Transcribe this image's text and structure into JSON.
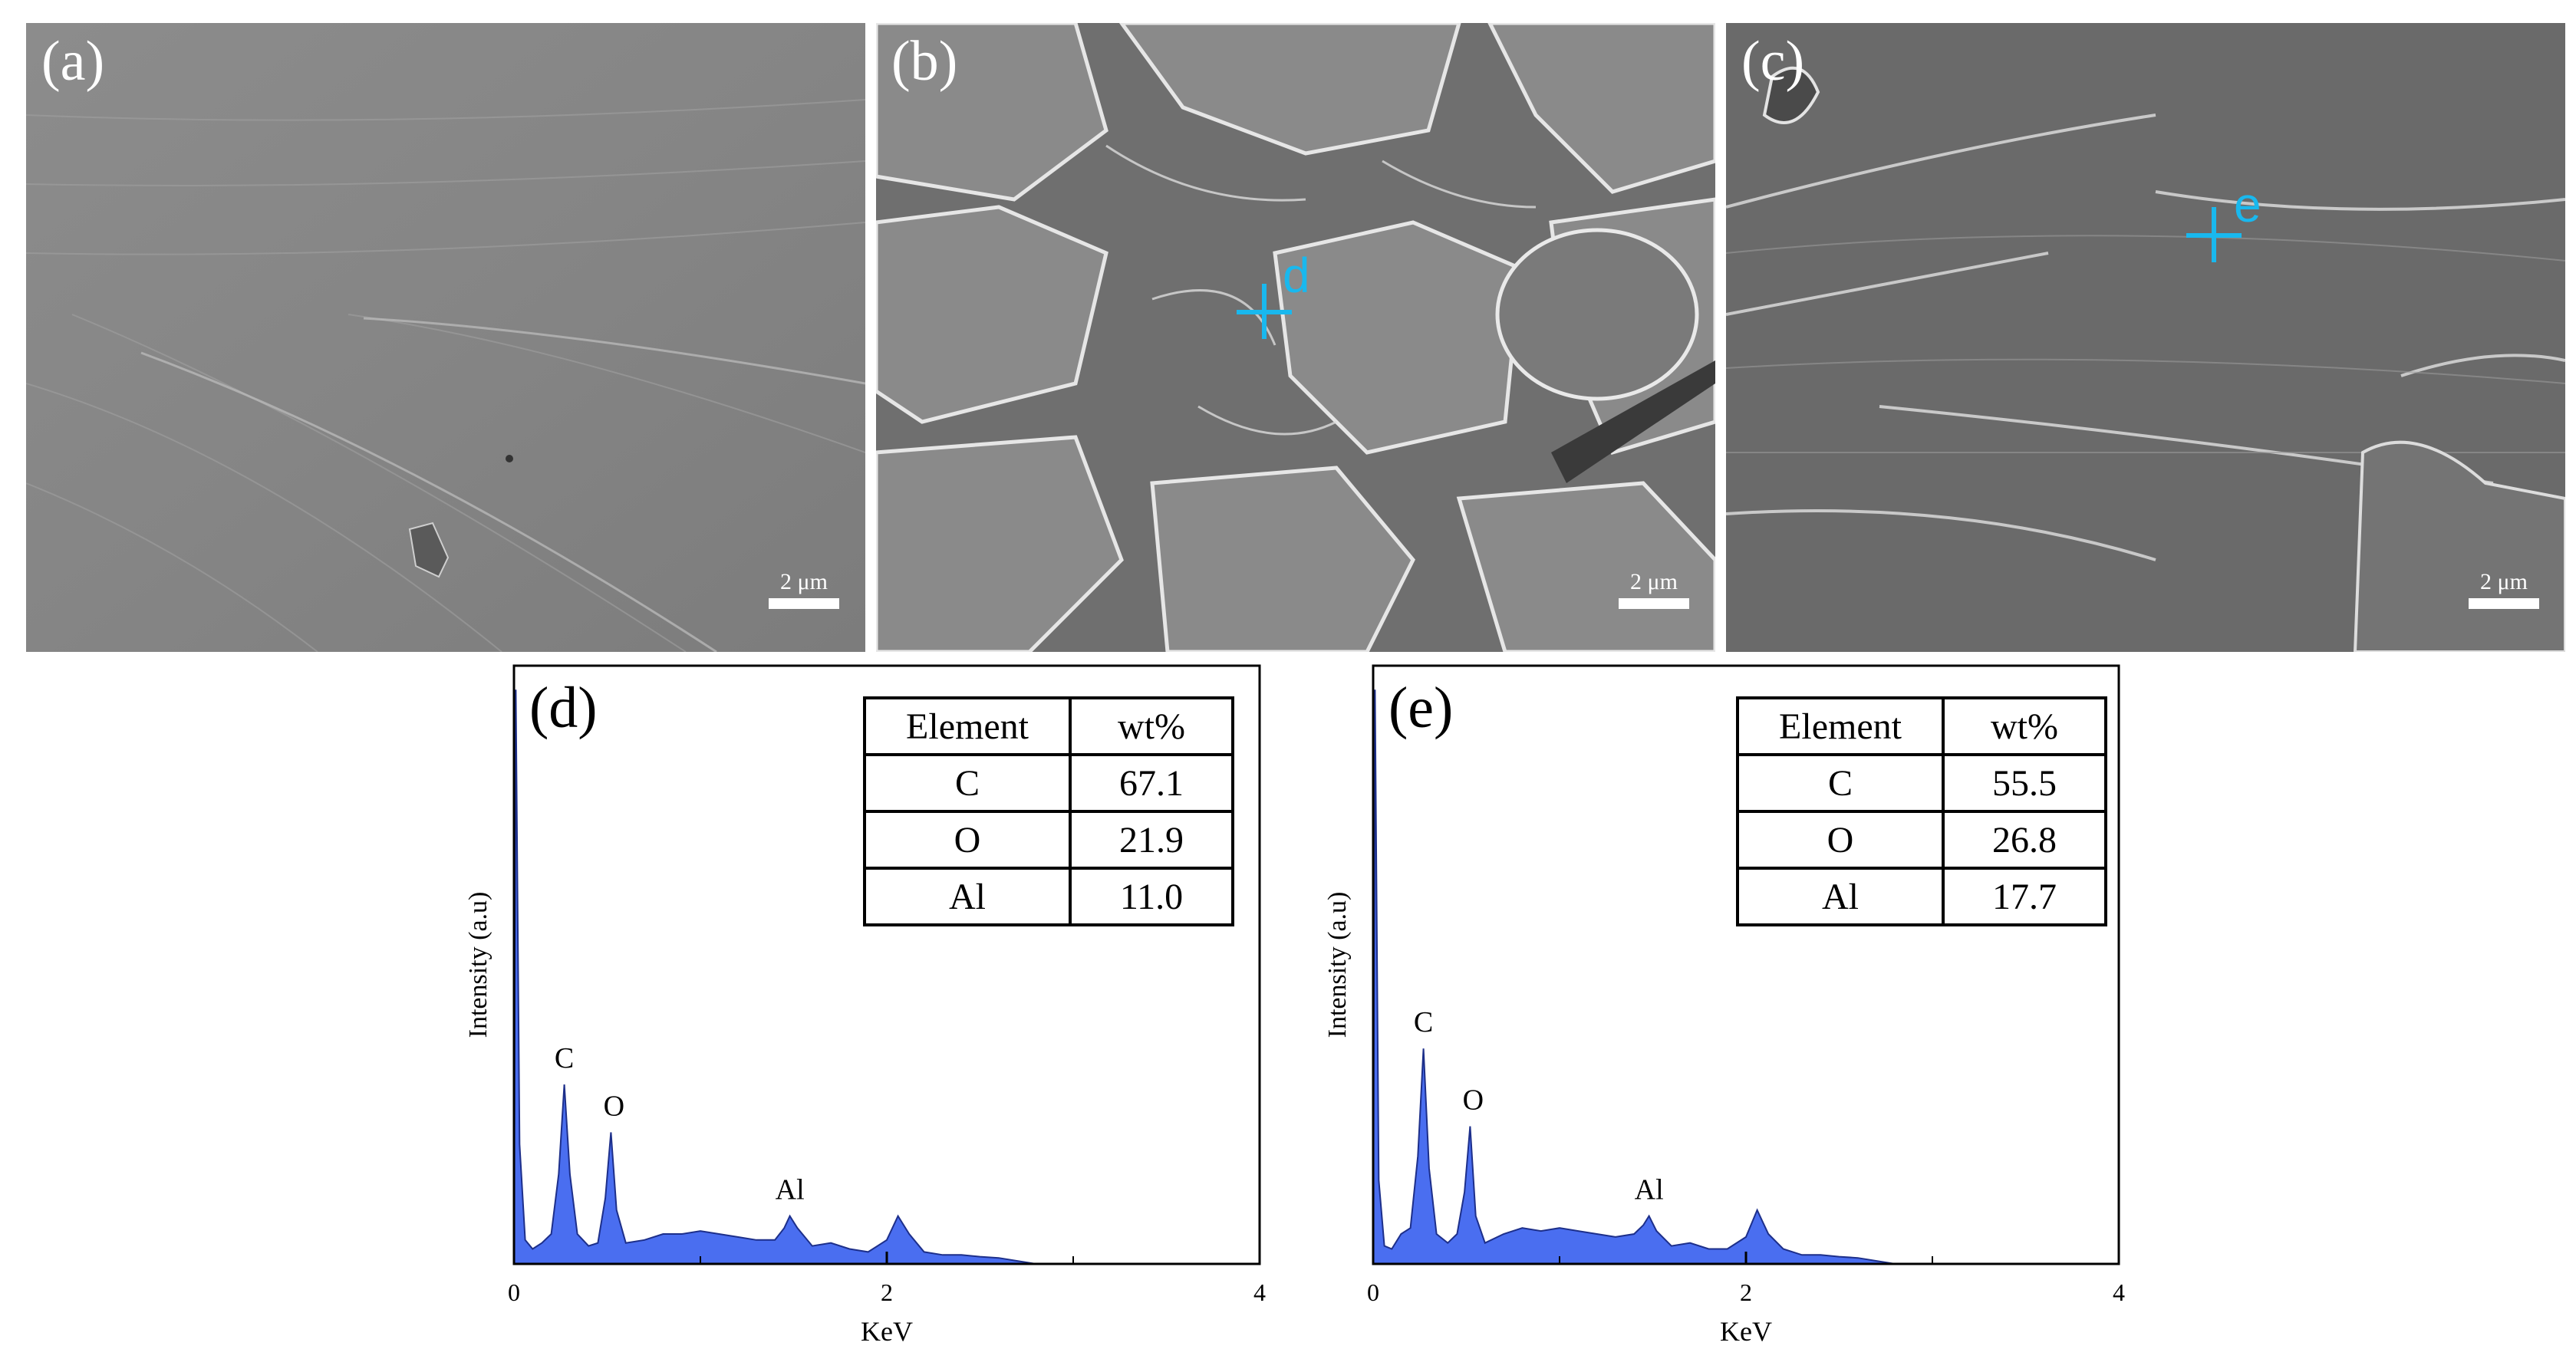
{
  "sem_panels": [
    {
      "label": "(a)",
      "scale": "2 μm",
      "marker": ""
    },
    {
      "label": "(b)",
      "scale": "2 μm",
      "marker": "d"
    },
    {
      "label": "(c)",
      "scale": "2 μm",
      "marker": "e"
    }
  ],
  "chart_data": [
    {
      "type": "area",
      "panel_label": "(d)",
      "xlabel": "KeV",
      "ylabel": "Intensity (a.u)",
      "xlim": [
        0,
        4
      ],
      "ylim": [
        0,
        100
      ],
      "x_ticks": [
        "0",
        "2",
        "4"
      ],
      "peaks": [
        {
          "element": "C",
          "x": 0.27,
          "y": 30
        },
        {
          "element": "O",
          "x": 0.52,
          "y": 22
        },
        {
          "element": "Al",
          "x": 1.48,
          "y": 8
        }
      ],
      "x": [
        0,
        0.01,
        0.03,
        0.06,
        0.1,
        0.15,
        0.2,
        0.24,
        0.27,
        0.3,
        0.34,
        0.4,
        0.45,
        0.49,
        0.52,
        0.55,
        0.6,
        0.7,
        0.8,
        0.9,
        1.0,
        1.1,
        1.2,
        1.3,
        1.4,
        1.45,
        1.48,
        1.52,
        1.6,
        1.7,
        1.8,
        1.9,
        2.0,
        2.06,
        2.12,
        2.2,
        2.3,
        2.4,
        2.5,
        2.6,
        2.7,
        2.8,
        3.0,
        4.0
      ],
      "y": [
        0,
        96,
        20,
        4,
        2.5,
        3.5,
        5,
        15,
        30,
        15,
        5,
        3,
        3.5,
        11,
        22,
        9,
        3.5,
        4,
        5,
        5,
        5.5,
        5,
        4.5,
        4,
        4,
        6,
        8,
        6,
        3,
        3.5,
        2.5,
        2,
        4,
        8,
        5,
        2,
        1.5,
        1.5,
        1.2,
        1,
        0.5,
        0,
        0,
        0
      ],
      "table": {
        "headers": [
          "Element",
          "wt%"
        ],
        "rows": [
          [
            "C",
            "67.1"
          ],
          [
            "O",
            "21.9"
          ],
          [
            "Al",
            "11.0"
          ]
        ]
      }
    },
    {
      "type": "area",
      "panel_label": "(e)",
      "xlabel": "KeV",
      "ylabel": "Intensity (a.u)",
      "xlim": [
        0,
        4
      ],
      "ylim": [
        0,
        100
      ],
      "x_ticks": [
        "0",
        "2",
        "4"
      ],
      "peaks": [
        {
          "element": "C",
          "x": 0.27,
          "y": 36
        },
        {
          "element": "O",
          "x": 0.52,
          "y": 23
        },
        {
          "element": "Al",
          "x": 1.48,
          "y": 8
        }
      ],
      "x": [
        0,
        0.01,
        0.03,
        0.06,
        0.1,
        0.15,
        0.2,
        0.24,
        0.27,
        0.3,
        0.34,
        0.4,
        0.45,
        0.49,
        0.52,
        0.55,
        0.6,
        0.7,
        0.8,
        0.9,
        1.0,
        1.1,
        1.2,
        1.3,
        1.4,
        1.45,
        1.48,
        1.52,
        1.6,
        1.7,
        1.8,
        1.9,
        2.0,
        2.06,
        2.12,
        2.2,
        2.3,
        2.4,
        2.5,
        2.6,
        2.7,
        2.8,
        3.0,
        4.0
      ],
      "y": [
        0,
        96,
        14,
        3,
        2.5,
        5,
        6,
        18,
        36,
        16,
        5,
        3.5,
        5,
        12,
        23,
        8,
        3.5,
        5,
        6,
        5.5,
        6,
        5.5,
        5,
        4.5,
        5,
        6.5,
        8,
        5.5,
        3,
        3.5,
        2.5,
        2.5,
        4.5,
        9,
        5,
        2.5,
        1.5,
        1.5,
        1.2,
        1,
        0.5,
        0,
        0,
        0
      ],
      "table": {
        "headers": [
          "Element",
          "wt%"
        ],
        "rows": [
          [
            "C",
            "55.5"
          ],
          [
            "O",
            "26.8"
          ],
          [
            "Al",
            "17.7"
          ]
        ]
      }
    }
  ],
  "colors": {
    "area": "#4a6ef0",
    "marker": "#19b8ee"
  }
}
